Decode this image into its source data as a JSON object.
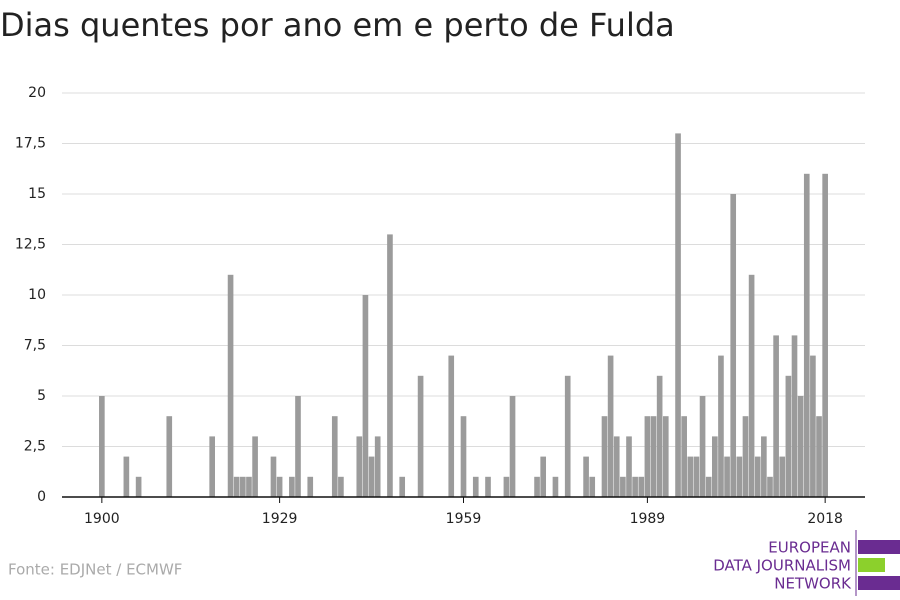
{
  "chart_data": {
    "type": "bar",
    "title": "Dias quentes por ano em e perto de Fulda",
    "source": "Fonte: EDJNet / ECMWF",
    "logo": [
      "EUROPEAN",
      "DATA JOURNALISM",
      "NETWORK"
    ],
    "color": "#9b9b9b",
    "x": [
      1900,
      1901,
      1902,
      1903,
      1904,
      1905,
      1906,
      1907,
      1908,
      1909,
      1910,
      1911,
      1912,
      1913,
      1914,
      1915,
      1916,
      1917,
      1918,
      1919,
      1920,
      1921,
      1922,
      1923,
      1924,
      1925,
      1926,
      1927,
      1928,
      1929,
      1930,
      1931,
      1932,
      1933,
      1934,
      1935,
      1936,
      1937,
      1938,
      1939,
      1940,
      1941,
      1942,
      1943,
      1944,
      1945,
      1946,
      1947,
      1948,
      1949,
      1950,
      1951,
      1952,
      1953,
      1954,
      1955,
      1956,
      1957,
      1958,
      1959,
      1960,
      1961,
      1962,
      1963,
      1964,
      1965,
      1966,
      1967,
      1968,
      1969,
      1970,
      1971,
      1972,
      1973,
      1974,
      1975,
      1976,
      1977,
      1978,
      1979,
      1980,
      1981,
      1982,
      1983,
      1984,
      1985,
      1986,
      1987,
      1988,
      1989,
      1990,
      1991,
      1992,
      1993,
      1994,
      1995,
      1996,
      1997,
      1998,
      1999,
      2000,
      2001,
      2002,
      2003,
      2004,
      2005,
      2006,
      2007,
      2008,
      2009,
      2010,
      2011,
      2012,
      2013,
      2014,
      2015,
      2016,
      2017,
      2018
    ],
    "values": [
      5,
      0,
      0,
      0,
      2,
      0,
      1,
      0,
      0,
      0,
      0,
      4,
      0,
      0,
      0,
      0,
      0,
      0,
      3,
      0,
      0,
      11,
      1,
      1,
      1,
      3,
      0,
      0,
      2,
      1,
      0,
      1,
      5,
      0,
      1,
      0,
      0,
      0,
      4,
      1,
      0,
      0,
      3,
      10,
      2,
      3,
      0,
      13,
      0,
      1,
      0,
      0,
      6,
      0,
      0,
      0,
      0,
      7,
      0,
      4,
      0,
      1,
      0,
      1,
      0,
      0,
      1,
      5,
      0,
      0,
      0,
      1,
      2,
      0,
      1,
      0,
      6,
      0,
      0,
      2,
      1,
      0,
      4,
      7,
      3,
      1,
      3,
      1,
      1,
      4,
      4,
      6,
      4,
      0,
      18,
      4,
      2,
      2,
      5,
      1,
      3,
      7,
      2,
      15,
      2,
      4,
      11,
      2,
      3,
      1,
      8,
      2,
      6,
      8,
      5,
      16,
      7,
      4,
      16
    ],
    "xlim": [
      1893.5,
      2024.5
    ],
    "xticks": [
      1900,
      1929,
      1959,
      1989,
      2018
    ],
    "ylim": [
      0,
      20
    ],
    "yticks": [
      0,
      {
        "value": 2.5,
        "label": "2,5"
      },
      5,
      {
        "value": 7.5,
        "label": "7,5"
      },
      10,
      {
        "value": 12.5,
        "label": "12,5"
      },
      15,
      {
        "value": 17.5,
        "label": "17,5"
      },
      20
    ],
    "grid": true
  }
}
